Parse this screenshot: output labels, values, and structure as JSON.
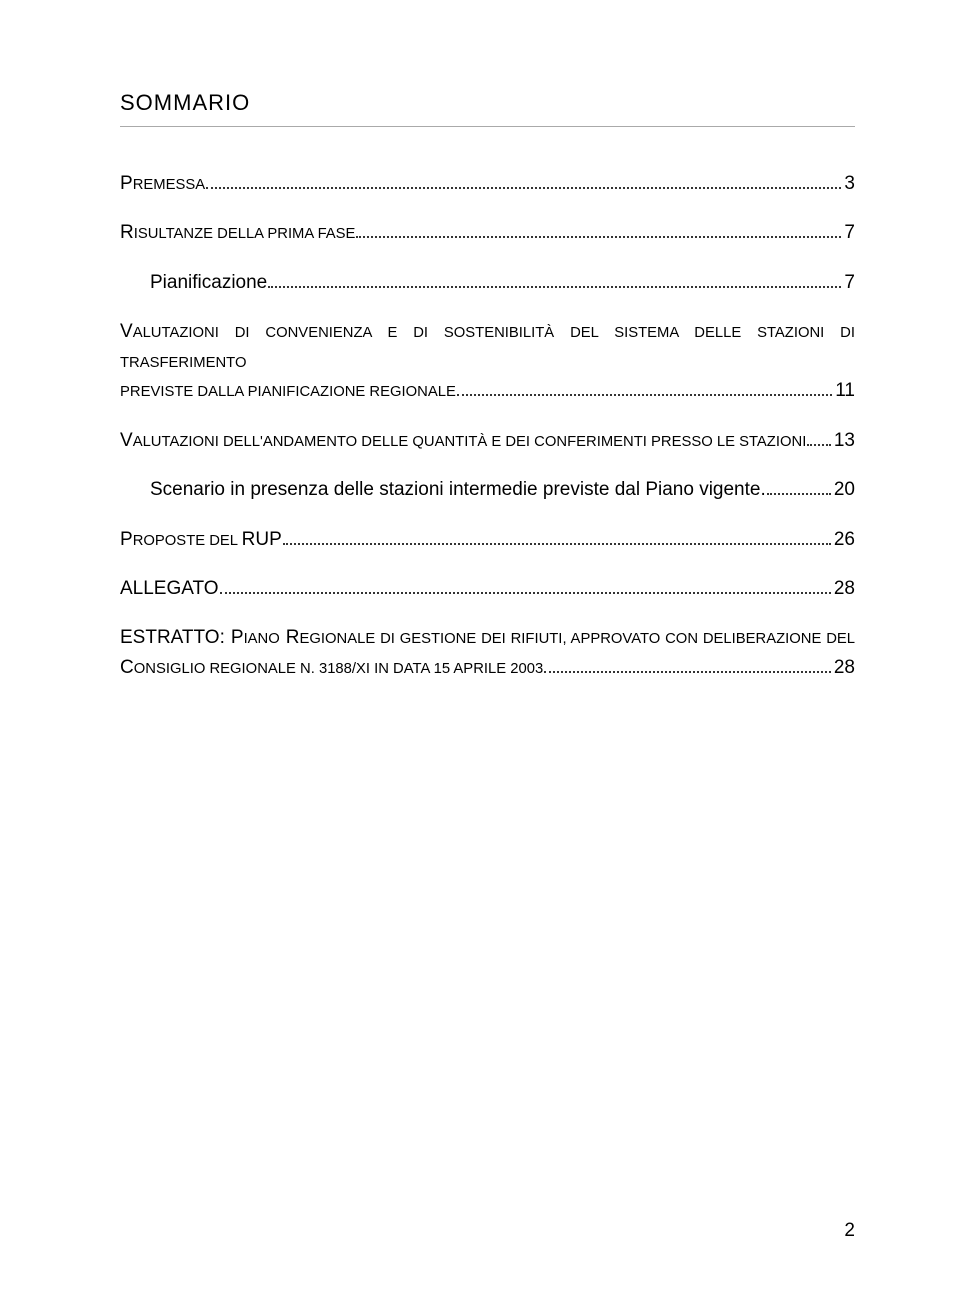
{
  "heading": "SOMMARIO",
  "toc": {
    "premessa": {
      "label_pre": "P",
      "label_rest": "REMESSA",
      "page": "3"
    },
    "risultanze": {
      "label_pre": "R",
      "label_rest": "ISULTANZE DELLA PRIMA FASE",
      "page": "7"
    },
    "pianificazione": {
      "label": "Pianificazione",
      "page": "7"
    },
    "valutazioni_conv_line1_pre": "V",
    "valutazioni_conv_line1_rest": "ALUTAZIONI DI CONVENIENZA E DI SOSTENIBILITÀ DEL SISTEMA DELLE STAZIONI DI TRASFERIMENTO",
    "valutazioni_conv_line2": "PREVISTE DALLA PIANIFICAZIONE REGIONALE",
    "valutazioni_conv_page": "11",
    "valutazioni_and": {
      "label_pre": "V",
      "label_rest": "ALUTAZIONI DELL'ANDAMENTO DELLE QUANTITÀ E DEI CONFERIMENTI PRESSO LE STAZIONI",
      "page": "13"
    },
    "scenario": {
      "label": "Scenario in presenza delle stazioni intermedie previste dal Piano vigente.",
      "page": "20"
    },
    "proposte": {
      "label_pre": "P",
      "label_rest": "ROPOSTE DEL ",
      "label_tail": "RUP",
      "page": "26"
    },
    "allegato": {
      "label": "ALLEGATO",
      "page": "28"
    },
    "estratto_line1_a": "ESTRATTO:",
    "estratto_line1_b_pre": "P",
    "estratto_line1_b_rest": "IANO",
    "estratto_line1_c_pre": "R",
    "estratto_line1_c_rest": "EGIONALE DI GESTIONE DEI RIFIUTI",
    "estratto_line1_d": ", APPROVATO CON DELIBERAZIONE DEL",
    "estratto_line2_pre": "C",
    "estratto_line2_rest": "ONSIGLIO REGIONALE N",
    "estratto_line2_tail": ". 3188/XI IN DATA 15 APRILE 2003",
    "estratto_page": "28"
  },
  "footer_page": "2",
  "colors": {
    "text": "#000000",
    "background": "#ffffff",
    "underline": "#aaaaaa",
    "dots": "#333333"
  },
  "typography": {
    "heading_fontsize": 22,
    "body_fontsize": 19,
    "line_height": 1.55
  }
}
